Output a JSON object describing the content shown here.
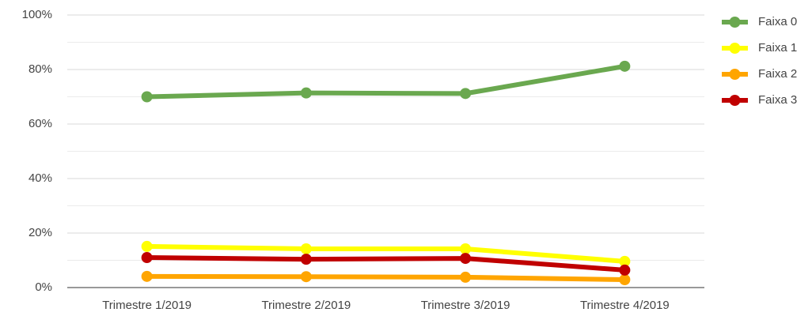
{
  "chart_data": {
    "type": "line",
    "categories": [
      "Trimestre 1/2019",
      "Trimestre 2/2019",
      "Trimestre 3/2019",
      "Trimestre 4/2019"
    ],
    "series": [
      {
        "name": "Faixa 0",
        "color": "#6aa84f",
        "values": [
          70,
          71.4,
          71.2,
          81.2
        ]
      },
      {
        "name": "Faixa 1",
        "color": "#ffff00",
        "values": [
          15.1,
          14.2,
          14.2,
          9.6
        ]
      },
      {
        "name": "Faixa 2",
        "color": "#ffa500",
        "values": [
          4.1,
          4,
          3.8,
          2.9
        ]
      },
      {
        "name": "Faixa 3",
        "color": "#c00000",
        "values": [
          11,
          10.4,
          10.7,
          6.4
        ]
      }
    ],
    "ylim": [
      0,
      100
    ],
    "yticks": [
      {
        "value": 0,
        "label": "0%"
      },
      {
        "value": 20,
        "label": "20%"
      },
      {
        "value": 40,
        "label": "40%"
      },
      {
        "value": 60,
        "label": "60%"
      },
      {
        "value": 80,
        "label": "80%"
      },
      {
        "value": 100,
        "label": "100%"
      }
    ],
    "yminorticks": [
      10,
      30,
      50,
      70,
      90
    ],
    "grid": true,
    "legend": "right"
  }
}
